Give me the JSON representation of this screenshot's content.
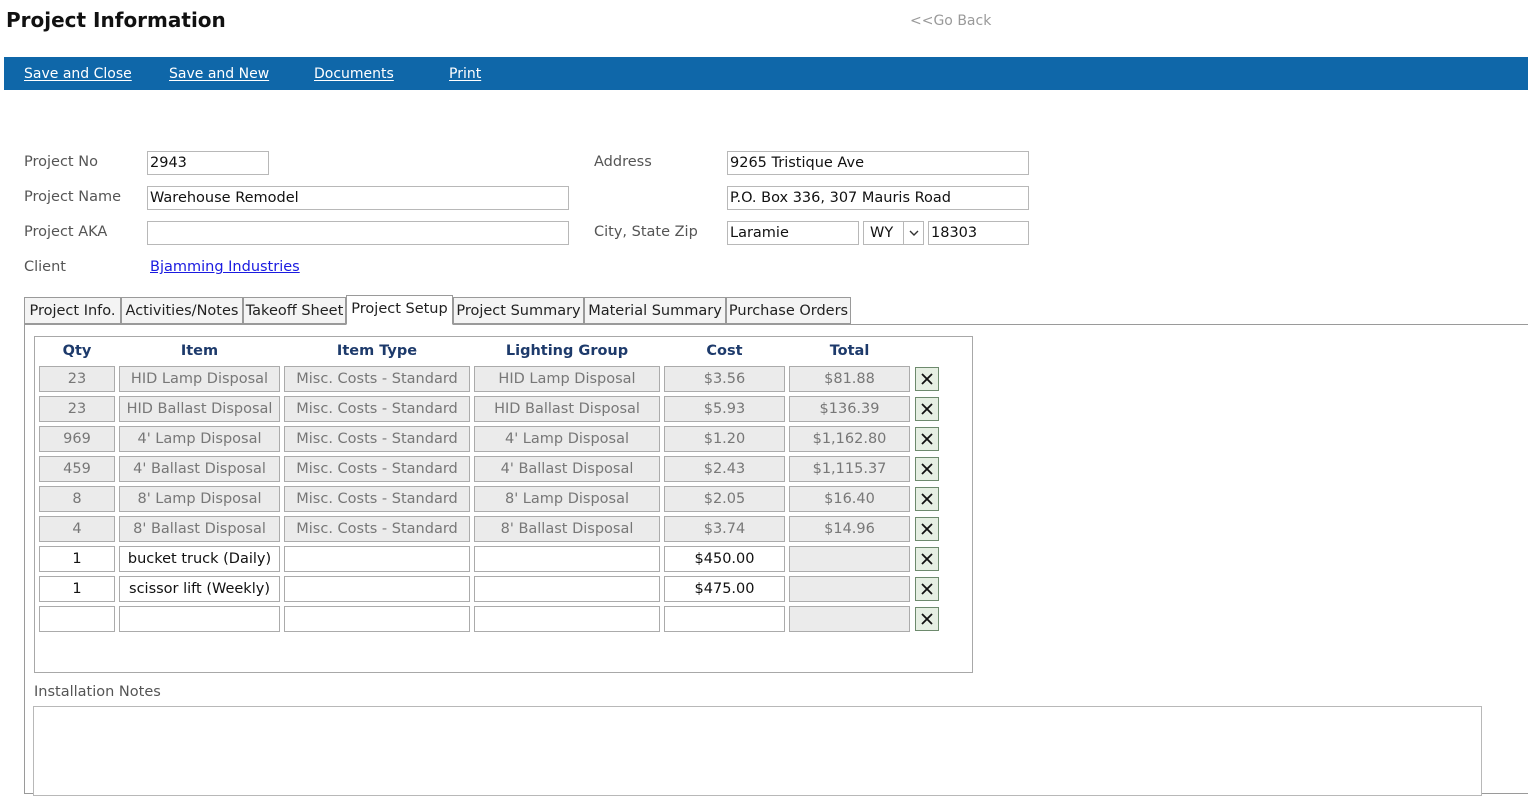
{
  "header": {
    "title": "Project Information",
    "go_back": "<<Go Back"
  },
  "toolbar": {
    "color": "#0f67a9",
    "save_close": "Save and Close",
    "save_new": "Save and New",
    "documents": "Documents",
    "print": "Print"
  },
  "form": {
    "project_no_label": "Project No",
    "project_no": "2943",
    "project_name_label": "Project Name",
    "project_name": "Warehouse Remodel",
    "project_aka_label": "Project AKA",
    "project_aka": "",
    "client_label": "Client",
    "client": "Bjamming Industries",
    "address_label": "Address",
    "address1": "9265 Tristique Ave",
    "address2": "P.O. Box 336, 307 Mauris Road",
    "city_state_zip_label": "City, State Zip",
    "city": "Laramie",
    "state": "WY",
    "zip": "18303"
  },
  "tabs": [
    "Project Info.",
    "Activities/Notes",
    "Takeoff Sheet",
    "Project Setup",
    "Project Summary",
    "Material Summary",
    "Purchase Orders"
  ],
  "active_tab": "Project Setup",
  "grid": {
    "columns": [
      "Qty",
      "Item",
      "Item Type",
      "Lighting Group",
      "Cost",
      "Total"
    ],
    "rows": [
      {
        "qty": "23",
        "item": "HID Lamp Disposal",
        "type": "Misc. Costs - Standard",
        "group": "HID Lamp Disposal",
        "cost": "$3.56",
        "total": "$81.88",
        "locked": true
      },
      {
        "qty": "23",
        "item": "HID Ballast Disposal",
        "type": "Misc. Costs - Standard",
        "group": "HID Ballast Disposal",
        "cost": "$5.93",
        "total": "$136.39",
        "locked": true
      },
      {
        "qty": "969",
        "item": "4' Lamp Disposal",
        "type": "Misc. Costs - Standard",
        "group": "4' Lamp Disposal",
        "cost": "$1.20",
        "total": "$1,162.80",
        "locked": true
      },
      {
        "qty": "459",
        "item": "4' Ballast Disposal",
        "type": "Misc. Costs - Standard",
        "group": "4' Ballast Disposal",
        "cost": "$2.43",
        "total": "$1,115.37",
        "locked": true
      },
      {
        "qty": "8",
        "item": "8' Lamp Disposal",
        "type": "Misc. Costs - Standard",
        "group": "8' Lamp Disposal",
        "cost": "$2.05",
        "total": "$16.40",
        "locked": true
      },
      {
        "qty": "4",
        "item": "8' Ballast Disposal",
        "type": "Misc. Costs - Standard",
        "group": "8' Ballast Disposal",
        "cost": "$3.74",
        "total": "$14.96",
        "locked": true
      },
      {
        "qty": "1",
        "item": "bucket truck (Daily)",
        "type": "",
        "group": "",
        "cost": "$450.00",
        "total": "",
        "locked": false
      },
      {
        "qty": "1",
        "item": "scissor lift (Weekly)",
        "type": "",
        "group": "",
        "cost": "$475.00",
        "total": "",
        "locked": false
      },
      {
        "qty": "",
        "item": "",
        "type": "",
        "group": "",
        "cost": "",
        "total": "",
        "locked": false
      }
    ],
    "delete_icon": "close-x-icon"
  },
  "notes": {
    "label": "Installation Notes",
    "value": ""
  }
}
